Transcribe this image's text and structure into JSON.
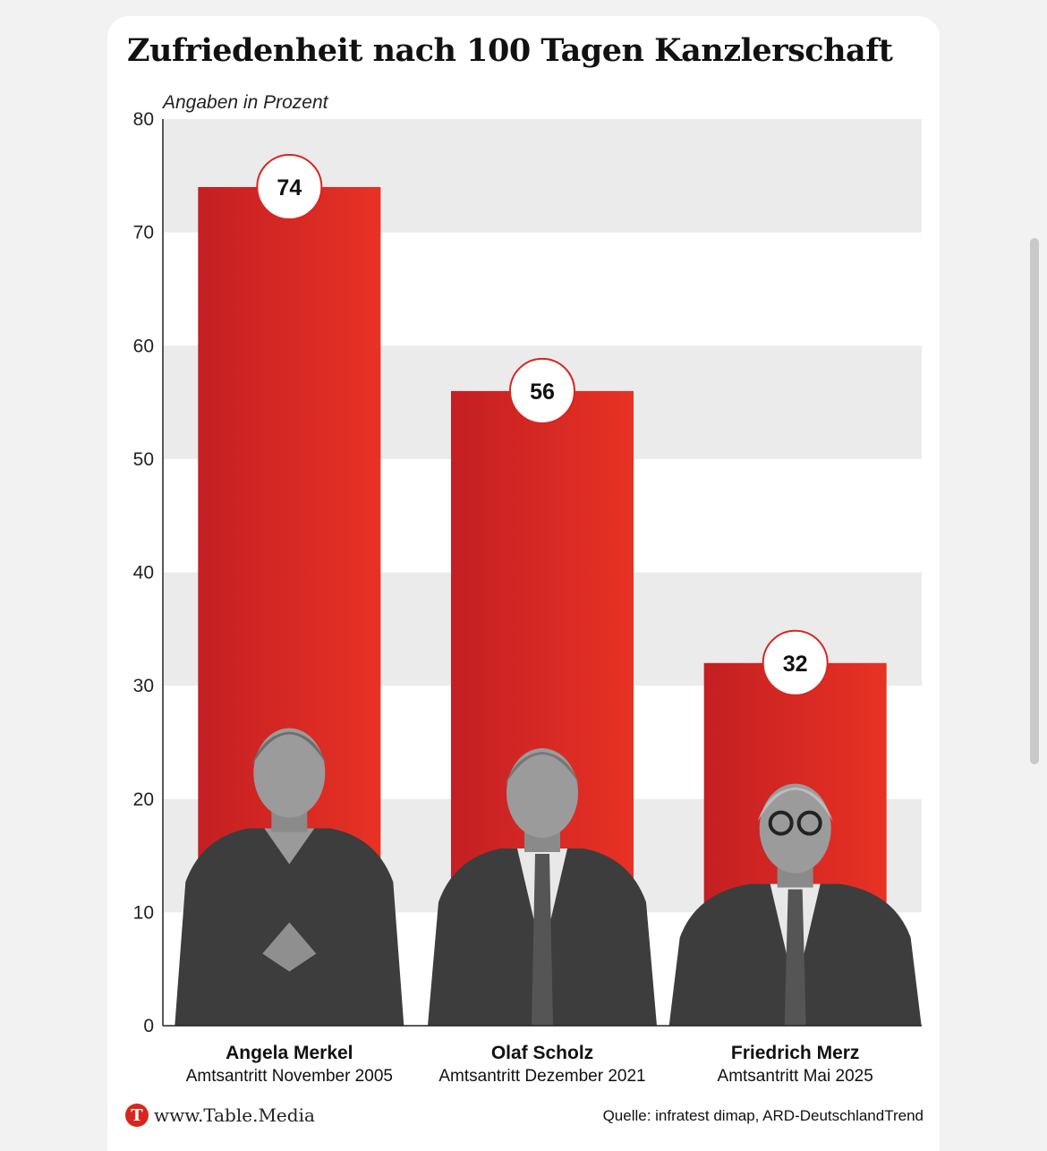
{
  "title": "Zufriedenheit nach 100 Tagen Kanzlerschaft",
  "subtitle": "Angaben in Prozent",
  "footer": {
    "logo_letter": "T",
    "site": "www.Table.Media",
    "source": "Quelle: infratest dimap, ARD-DeutschlandTrend"
  },
  "colors": {
    "bar_dark": "#c41f23",
    "bar_light": "#e83224",
    "band": "#ebebeb",
    "label_circle_border": "#d8261f"
  },
  "chart_data": {
    "type": "bar",
    "categories": [
      "Angela Merkel",
      "Olaf Scholz",
      "Friedrich Merz"
    ],
    "category_sublabels": [
      "Amtsantritt November 2005",
      "Amtsantritt Dezember 2021",
      "Amtsantritt Mai 2025"
    ],
    "values": [
      74,
      56,
      32
    ],
    "data_labels": [
      "74",
      "56",
      "32"
    ],
    "title": "Zufriedenheit nach 100 Tagen Kanzlerschaft",
    "ylabel": "Angaben in Prozent",
    "ylim": [
      0,
      80
    ],
    "yticks": [
      0,
      10,
      20,
      30,
      40,
      50,
      60,
      70,
      80
    ],
    "grid": "alternating horizontal bands",
    "portraits": [
      "Angela Merkel",
      "Olaf Scholz",
      "Friedrich Merz"
    ]
  }
}
